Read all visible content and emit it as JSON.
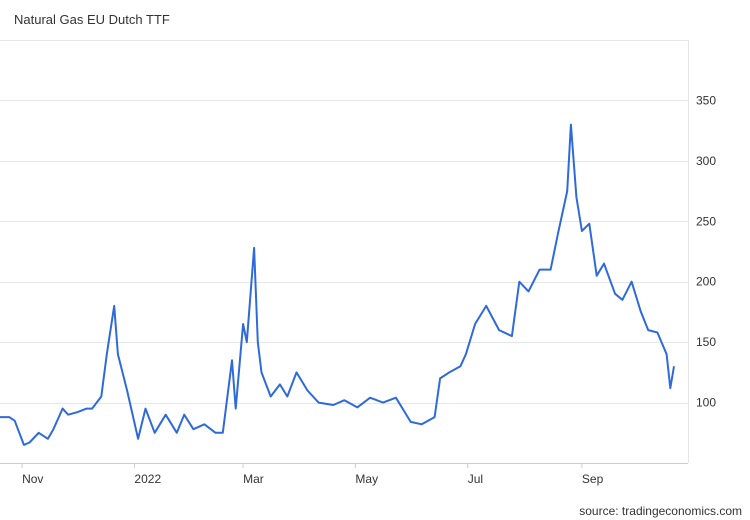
{
  "chart_data": {
    "type": "line",
    "title": "Natural Gas EU Dutch TTF",
    "xlabel": "",
    "ylabel": "",
    "source": "source: tradingeconomics.com",
    "ylim": [
      50,
      400
    ],
    "y_ticks": [
      100,
      150,
      200,
      250,
      300,
      350
    ],
    "x_tick_labels": [
      "Nov",
      "2022",
      "Mar",
      "May",
      "Jul",
      "Sep"
    ],
    "grid": true,
    "legend": "none",
    "line_color": "#2f6ad9",
    "series": [
      {
        "x": [
          "2021-10-20",
          "2021-10-25",
          "2021-10-28",
          "2021-11-02",
          "2021-11-05",
          "2021-11-10",
          "2021-11-15",
          "2021-11-18",
          "2021-11-23",
          "2021-11-26",
          "2021-12-01",
          "2021-12-06",
          "2021-12-09",
          "2021-12-14",
          "2021-12-17",
          "2021-12-21",
          "2021-12-23",
          "2021-12-28",
          "2022-01-03",
          "2022-01-07",
          "2022-01-12",
          "2022-01-18",
          "2022-01-24",
          "2022-01-28",
          "2022-02-02",
          "2022-02-08",
          "2022-02-14",
          "2022-02-18",
          "2022-02-23",
          "2022-02-25",
          "2022-03-01",
          "2022-03-03",
          "2022-03-07",
          "2022-03-09",
          "2022-03-11",
          "2022-03-16",
          "2022-03-21",
          "2022-03-25",
          "2022-03-30",
          "2022-04-05",
          "2022-04-11",
          "2022-04-19",
          "2022-04-25",
          "2022-05-02",
          "2022-05-09",
          "2022-05-16",
          "2022-05-23",
          "2022-05-31",
          "2022-06-06",
          "2022-06-13",
          "2022-06-16",
          "2022-06-21",
          "2022-06-27",
          "2022-06-30",
          "2022-07-05",
          "2022-07-11",
          "2022-07-18",
          "2022-07-25",
          "2022-07-29",
          "2022-08-03",
          "2022-08-09",
          "2022-08-15",
          "2022-08-19",
          "2022-08-24",
          "2022-08-26",
          "2022-08-29",
          "2022-09-01",
          "2022-09-05",
          "2022-09-09",
          "2022-09-13",
          "2022-09-19",
          "2022-09-23",
          "2022-09-28",
          "2022-10-03",
          "2022-10-07",
          "2022-10-12",
          "2022-10-17",
          "2022-10-19",
          "2022-10-21"
        ],
        "values": [
          88,
          88,
          85,
          65,
          67,
          75,
          70,
          78,
          95,
          90,
          92,
          95,
          95,
          105,
          140,
          180,
          140,
          110,
          70,
          95,
          75,
          90,
          75,
          90,
          78,
          82,
          75,
          75,
          135,
          95,
          165,
          150,
          228,
          150,
          125,
          105,
          115,
          105,
          125,
          110,
          100,
          98,
          102,
          96,
          104,
          100,
          104,
          84,
          82,
          88,
          120,
          125,
          130,
          140,
          165,
          180,
          160,
          155,
          200,
          192,
          210,
          210,
          240,
          275,
          330,
          270,
          242,
          248,
          205,
          215,
          190,
          185,
          200,
          175,
          160,
          158,
          140,
          112,
          130
        ]
      }
    ]
  }
}
